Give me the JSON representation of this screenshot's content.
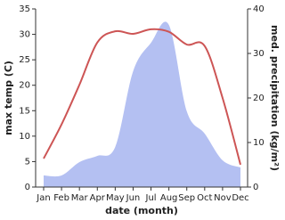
{
  "chart_data": {
    "type": "line",
    "categories": [
      "Jan",
      "Feb",
      "Mar",
      "Apr",
      "May",
      "Jun",
      "Jul",
      "Aug",
      "Sep",
      "Oct",
      "Nov",
      "Dec"
    ],
    "x_label": "date (month)",
    "y_label": "max temp (C)",
    "y2_label": "med. precipitation (kg/m²)",
    "ylim": [
      0,
      35
    ],
    "yticks": [
      0,
      5,
      10,
      15,
      20,
      25,
      30,
      35
    ],
    "y2lim": [
      0,
      40
    ],
    "y2ticks": [
      0,
      10,
      20,
      30,
      40
    ],
    "series": [
      {
        "name": "max temp",
        "type": "line",
        "color": "#cd5555",
        "values": [
          5.6,
          12.3,
          20.1,
          28.4,
          30.6,
          30.1,
          31,
          30.5,
          28,
          27.7,
          17.5,
          4.4
        ]
      },
      {
        "name": "med. precipitation",
        "type": "area",
        "axis": "y2",
        "color": "#b4c0f2",
        "values": [
          2.6,
          2.6,
          5.6,
          7,
          9,
          26,
          32.4,
          36.4,
          17,
          12,
          6,
          4.4
        ]
      }
    ]
  }
}
